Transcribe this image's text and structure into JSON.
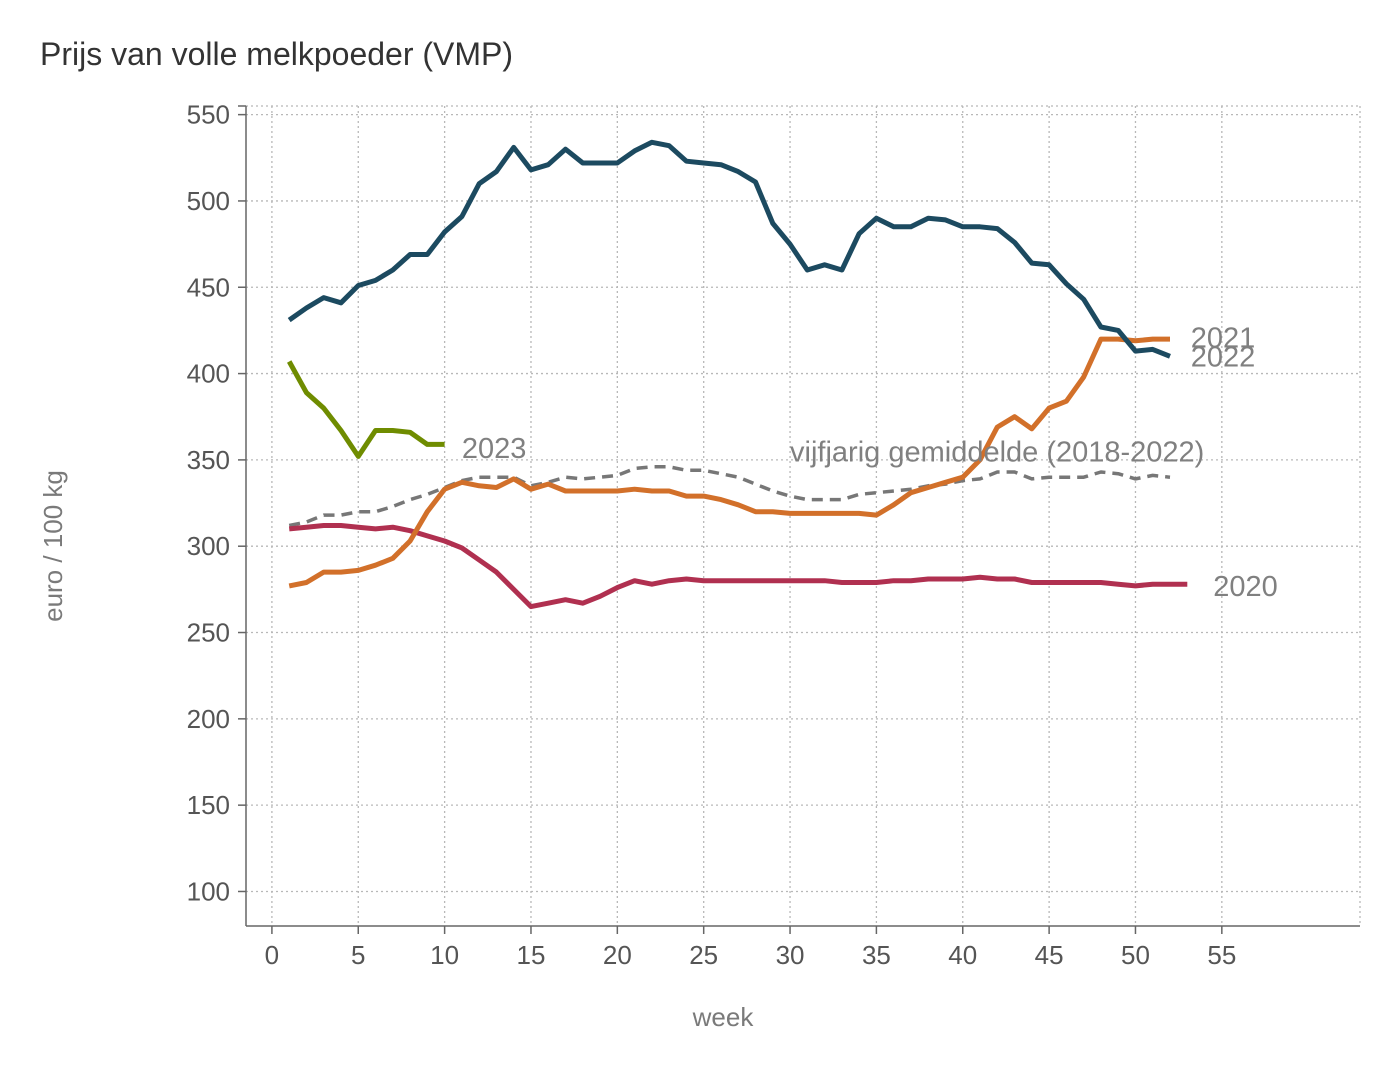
{
  "chart_data": {
    "type": "line",
    "title": "Prijs van volle melkpoeder (VMP)",
    "xlabel": "week",
    "ylabel": "euro / 100 kg",
    "xlim": [
      -1.5,
      63
    ],
    "ylim": [
      80,
      555
    ],
    "xticks": [
      0,
      5,
      10,
      15,
      20,
      25,
      30,
      35,
      40,
      45,
      50,
      55
    ],
    "yticks": [
      100,
      150,
      200,
      250,
      300,
      350,
      400,
      450,
      500,
      550
    ],
    "grid": true,
    "legend": "none",
    "series": [
      {
        "name": "vijfjarig gemiddelde (2018-2022)",
        "color": "#777777",
        "dashed": true,
        "label_x": 30,
        "label_y": 355,
        "x": [
          1,
          2,
          3,
          4,
          5,
          6,
          7,
          8,
          9,
          10,
          11,
          12,
          13,
          14,
          15,
          16,
          17,
          18,
          19,
          20,
          21,
          22,
          23,
          24,
          25,
          26,
          27,
          28,
          29,
          30,
          31,
          32,
          33,
          34,
          35,
          36,
          37,
          38,
          39,
          40,
          41,
          42,
          43,
          44,
          45,
          46,
          47,
          48,
          49,
          50,
          51,
          52
        ],
        "values": [
          312,
          314,
          318,
          318,
          320,
          320,
          323,
          327,
          330,
          334,
          338,
          340,
          340,
          340,
          335,
          337,
          340,
          339,
          340,
          341,
          345,
          346,
          346,
          344,
          344,
          342,
          340,
          336,
          332,
          329,
          327,
          327,
          327,
          330,
          331,
          332,
          333,
          335,
          336,
          338,
          339,
          343,
          343,
          339,
          340,
          340,
          340,
          343,
          342,
          339,
          341,
          340
        ]
      },
      {
        "name": "2020",
        "color": "#b03050",
        "dashed": false,
        "label_x": 54.5,
        "label_y": 277,
        "x": [
          1,
          2,
          3,
          4,
          5,
          6,
          7,
          8,
          9,
          10,
          11,
          12,
          13,
          14,
          15,
          16,
          17,
          18,
          19,
          20,
          21,
          22,
          23,
          24,
          25,
          26,
          27,
          28,
          29,
          30,
          31,
          32,
          33,
          34,
          35,
          36,
          37,
          38,
          39,
          40,
          41,
          42,
          43,
          44,
          45,
          46,
          47,
          48,
          49,
          50,
          51,
          52,
          53
        ],
        "values": [
          310,
          311,
          312,
          312,
          311,
          310,
          311,
          309,
          306,
          303,
          299,
          292,
          285,
          275,
          265,
          267,
          269,
          267,
          271,
          276,
          280,
          278,
          280,
          281,
          280,
          280,
          280,
          280,
          280,
          280,
          280,
          280,
          279,
          279,
          279,
          280,
          280,
          281,
          281,
          281,
          282,
          281,
          281,
          279,
          279,
          279,
          279,
          279,
          278,
          277,
          278,
          278,
          278
        ]
      },
      {
        "name": "2021",
        "color": "#d2702a",
        "dashed": false,
        "label_x": 53.2,
        "label_y": 421,
        "x": [
          1,
          2,
          3,
          4,
          5,
          6,
          7,
          8,
          9,
          10,
          11,
          12,
          13,
          14,
          15,
          16,
          17,
          18,
          19,
          20,
          21,
          22,
          23,
          24,
          25,
          26,
          27,
          28,
          29,
          30,
          31,
          32,
          33,
          34,
          35,
          36,
          37,
          38,
          39,
          40,
          41,
          42,
          43,
          44,
          45,
          46,
          47,
          48,
          49,
          50,
          51,
          52
        ],
        "values": [
          277,
          279,
          285,
          285,
          286,
          289,
          293,
          303,
          320,
          333,
          337,
          335,
          334,
          339,
          333,
          336,
          332,
          332,
          332,
          332,
          333,
          332,
          332,
          329,
          329,
          327,
          324,
          320,
          320,
          319,
          319,
          319,
          319,
          319,
          318,
          324,
          331,
          334,
          337,
          340,
          350,
          369,
          375,
          368,
          380,
          384,
          398,
          420,
          420,
          419,
          420,
          420
        ]
      },
      {
        "name": "2022",
        "color": "#1c4a60",
        "dashed": false,
        "label_x": 53.2,
        "label_y": 410,
        "x": [
          1,
          2,
          3,
          4,
          5,
          6,
          7,
          8,
          9,
          10,
          11,
          12,
          13,
          14,
          15,
          16,
          17,
          18,
          19,
          20,
          21,
          22,
          23,
          24,
          25,
          26,
          27,
          28,
          29,
          30,
          31,
          32,
          33,
          34,
          35,
          36,
          37,
          38,
          39,
          40,
          41,
          42,
          43,
          44,
          45,
          46,
          47,
          48,
          49,
          50,
          51,
          52
        ],
        "values": [
          431,
          438,
          444,
          441,
          451,
          454,
          460,
          469,
          469,
          482,
          491,
          510,
          517,
          531,
          518,
          521,
          530,
          522,
          522,
          522,
          529,
          534,
          532,
          523,
          522,
          521,
          517,
          511,
          487,
          475,
          460,
          463,
          460,
          481,
          490,
          485,
          485,
          490,
          489,
          485,
          485,
          484,
          476,
          464,
          463,
          452,
          443,
          427,
          425,
          413,
          414,
          410
        ]
      },
      {
        "name": "2023",
        "color": "#6f8c00",
        "dashed": false,
        "label_x": 11,
        "label_y": 357,
        "x": [
          1,
          2,
          3,
          4,
          5,
          6,
          7,
          8,
          9,
          10
        ],
        "values": [
          407,
          389,
          380,
          367,
          352,
          367,
          367,
          366,
          359,
          359
        ]
      }
    ]
  }
}
